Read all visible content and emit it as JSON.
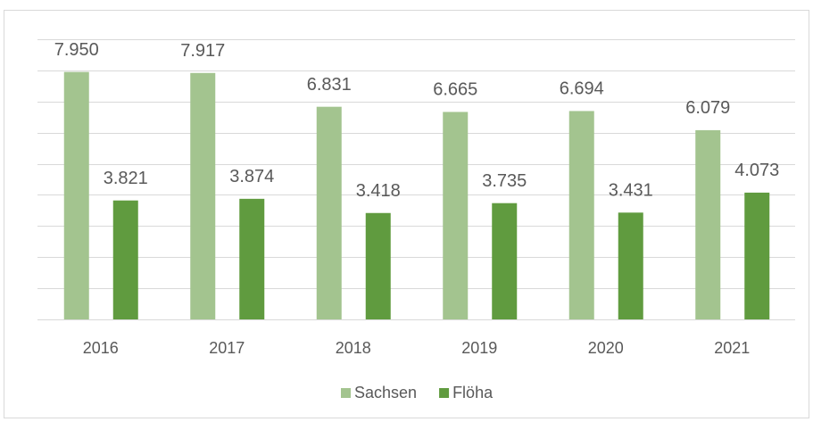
{
  "chart_data": {
    "type": "bar",
    "categories": [
      "2016",
      "2017",
      "2018",
      "2019",
      "2020",
      "2021"
    ],
    "series": [
      {
        "name": "Sachsen",
        "color": "#a3c48f",
        "values": [
          7950,
          7917,
          6831,
          6665,
          6694,
          6079
        ],
        "value_labels": [
          "7.950",
          "7.917",
          "6.831",
          "6.665",
          "6.694",
          "6.079"
        ]
      },
      {
        "name": "Flöha",
        "color": "#609b3f",
        "values": [
          3821,
          3874,
          3418,
          3735,
          3431,
          4073
        ],
        "value_labels": [
          "3.821",
          "3.874",
          "3.418",
          "3.735",
          "3.431",
          "4.073"
        ]
      }
    ],
    "ylim": [
      0,
      9000
    ],
    "yticks": [
      0,
      1000,
      2000,
      3000,
      4000,
      5000,
      6000,
      7000,
      8000,
      9000
    ],
    "grid": true,
    "legend": "bottom"
  }
}
